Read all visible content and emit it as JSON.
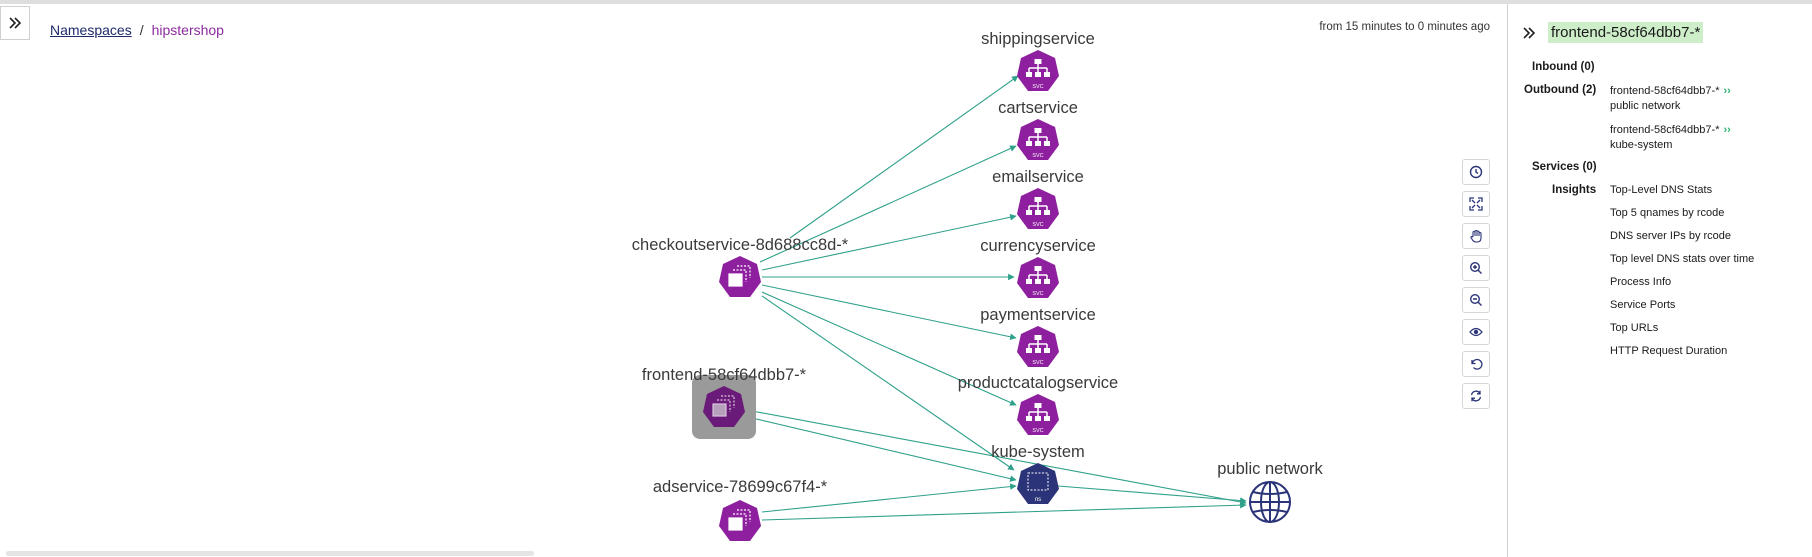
{
  "breadcrumb": {
    "namespaces": "Namespaces",
    "separator": "/",
    "current": "hipstershop"
  },
  "time_range": "from 15 minutes to 0 minutes ago",
  "graph": {
    "nodes": {
      "shippingservice": {
        "label": "shippingservice",
        "type": "svc"
      },
      "cartservice": {
        "label": "cartservice",
        "type": "svc"
      },
      "emailservice": {
        "label": "emailservice",
        "type": "svc"
      },
      "currencyservice": {
        "label": "currencyservice",
        "type": "svc"
      },
      "paymentservice": {
        "label": "paymentservice",
        "type": "svc"
      },
      "productcatalogservice": {
        "label": "productcatalogservice",
        "type": "svc"
      },
      "kube_system": {
        "label": "kube-system",
        "type": "ns"
      },
      "public_network": {
        "label": "public network",
        "type": "network"
      },
      "checkoutservice": {
        "label": "checkoutservice-8d688cc8d-*",
        "type": "pod"
      },
      "frontend": {
        "label": "frontend-58cf64dbb7-*",
        "type": "pod",
        "selected": true
      },
      "adservice": {
        "label": "adservice-78699c67f4-*",
        "type": "pod"
      }
    },
    "badges": {
      "svc": "SVC",
      "ns": "ns"
    }
  },
  "toolbar": {
    "buttons": [
      "clock-icon",
      "fit-screen-icon",
      "pan-hand-icon",
      "zoom-in-icon",
      "zoom-out-icon",
      "eye-icon",
      "undo-icon",
      "refresh-icon"
    ]
  },
  "panel": {
    "title": "frontend-58cf64dbb7-*",
    "inbound_label": "Inbound (0)",
    "outbound_label": "Outbound (2)",
    "outbound": [
      {
        "source": "frontend-58cf64dbb7-*",
        "target": "public network"
      },
      {
        "source": "frontend-58cf64dbb7-*",
        "target": "kube-system"
      }
    ],
    "services_label": "Services (0)",
    "insights_label": "Insights",
    "insights": [
      "Top-Level DNS Stats",
      "Top 5 qnames by rcode",
      "DNS server IPs by rcode",
      "Top level DNS stats over time",
      "Process Info",
      "Service Ports",
      "Top URLs",
      "HTTP Request Duration"
    ]
  },
  "colors": {
    "svc_node": "#8e1f9e",
    "ns_node": "#2b3478",
    "edge": "#2fa08a",
    "selected_bg": "#9a9a9a",
    "title_highlight": "#cdeec9",
    "outbound_chevron": "#2bb574"
  }
}
